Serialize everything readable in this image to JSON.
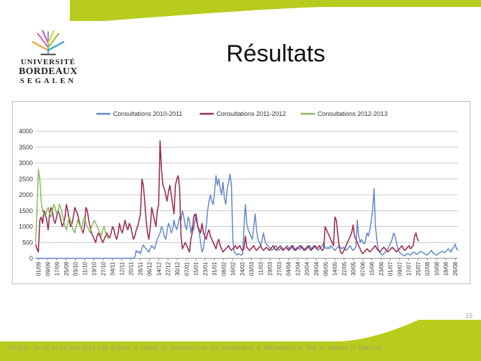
{
  "logo": {
    "line1": "UNIVERSITÉ",
    "line2": "BORDEAUX",
    "line3": "SEGALEN"
  },
  "slide": {
    "title": "Résultats",
    "page_number": "15",
    "footer": "CIUEN - du 16 au 18 avril 2012    J.M. Dubois, J. Gabet, O. Hauchecorne, Ch. Michenaud, S. Michenaud, N. Pré, H. Vaissié, R. Daumas"
  },
  "colors": {
    "accent_green": "#b8cc1e",
    "series_2010": "#5f86c8",
    "series_2011": "#9c2a4e",
    "series_2012": "#86b75a"
  },
  "chart_data": {
    "type": "line",
    "title": "",
    "xlabel": "",
    "ylabel": "",
    "ylim": [
      0,
      4000
    ],
    "yticks": [
      0,
      500,
      1000,
      1500,
      2000,
      2500,
      3000,
      3500,
      4000
    ],
    "grid": true,
    "legend": "top",
    "x_labels": [
      "01/09",
      "09/09",
      "17/09",
      "25/09",
      "03/10",
      "11/10",
      "19/10",
      "27/10",
      "04/11",
      "12/11",
      "20/11",
      "28/11",
      "06/12",
      "14/12",
      "22/12",
      "30/12",
      "07/01",
      "15/01",
      "23/01",
      "31/01",
      "08/02",
      "16/02",
      "24/02",
      "03/03",
      "11/03",
      "19/03",
      "27/03",
      "04/04",
      "12/04",
      "20/04",
      "28/04",
      "06/05",
      "14/05",
      "22/05",
      "30/05",
      "07/06",
      "15/06",
      "23/06",
      "01/07",
      "09/07",
      "17/07",
      "25/07",
      "02/08",
      "10/08",
      "18/08",
      "26/08"
    ],
    "series": [
      {
        "name": "Consultations 2010-2011",
        "color": "#5f86c8",
        "values": [
          0,
          0,
          0,
          0,
          0,
          0,
          0,
          0,
          0,
          0,
          0,
          0,
          0,
          0,
          0,
          0,
          0,
          0,
          0,
          0,
          0,
          0,
          0,
          0,
          0,
          0,
          0,
          0,
          0,
          0,
          0,
          0,
          0,
          0,
          0,
          0,
          0,
          0,
          0,
          0,
          0,
          0,
          0,
          0,
          0,
          0,
          0,
          0,
          0,
          0,
          0,
          0,
          0,
          0,
          0,
          0,
          0,
          0,
          0,
          0,
          0,
          0,
          0,
          0,
          0,
          0,
          0,
          0,
          0,
          0,
          0,
          50,
          250,
          180,
          220,
          150,
          300,
          420,
          350,
          300,
          250,
          200,
          320,
          400,
          350,
          300,
          450,
          600,
          700,
          800,
          1000,
          900,
          700,
          600,
          850,
          1100,
          1000,
          800,
          900,
          1200,
          1000,
          900,
          1100,
          1300,
          1200,
          1500,
          1300,
          1000,
          900,
          1300,
          1200,
          800,
          1000,
          900,
          1200,
          1400,
          1000,
          800,
          500,
          200,
          300,
          700,
          1000,
          1500,
          1800,
          2000,
          1800,
          1700,
          2100,
          2600,
          2300,
          2500,
          2200,
          2000,
          2400,
          1900,
          1700,
          2200,
          2400,
          2650,
          2300,
          600,
          200,
          150,
          100,
          150,
          120,
          100,
          130,
          1000,
          1700,
          1100,
          900,
          800,
          700,
          600,
          1000,
          1400,
          900,
          600,
          500,
          400,
          600,
          800,
          550,
          450,
          400,
          350,
          300,
          250,
          300,
          350,
          400,
          300,
          250,
          300,
          350,
          280,
          300,
          350,
          400,
          300,
          350,
          400,
          300,
          250,
          300,
          350,
          300,
          280,
          400,
          350,
          300,
          250,
          300,
          350,
          400,
          300,
          350,
          400,
          350,
          300,
          250,
          300,
          350,
          400,
          500,
          350,
          300,
          350,
          300,
          400,
          350,
          300,
          250,
          300,
          350,
          400,
          350,
          300,
          350,
          300,
          250,
          300,
          350,
          400,
          300,
          250,
          300,
          350,
          1200,
          700,
          500,
          600,
          500,
          450,
          600,
          800,
          700,
          900,
          1200,
          1500,
          2200,
          1000,
          600,
          300,
          200,
          150,
          100,
          150,
          200,
          250,
          300,
          400,
          500,
          600,
          800,
          700,
          500,
          300,
          200,
          150,
          120,
          100,
          80,
          120,
          150,
          120,
          100,
          150,
          200,
          180,
          150,
          120,
          180,
          220,
          200,
          180,
          150,
          120,
          100,
          150,
          200,
          250,
          180,
          150,
          120,
          100,
          150,
          180,
          200,
          220,
          180,
          200,
          250,
          300,
          250,
          200,
          300,
          350,
          450,
          300,
          250
        ]
      },
      {
        "name": "Consultations 2011-2012",
        "color": "#9c2a4e",
        "values": [
          450,
          300,
          200,
          1200,
          1300,
          1100,
          1500,
          1400,
          1200,
          900,
          1400,
          1600,
          1500,
          1200,
          1100,
          1300,
          1500,
          1400,
          1200,
          1000,
          1100,
          1300,
          1700,
          1500,
          1200,
          1000,
          1100,
          1300,
          1600,
          1500,
          1400,
          1200,
          1000,
          900,
          800,
          1000,
          1600,
          1500,
          1200,
          1000,
          800,
          700,
          600,
          500,
          700,
          800,
          700,
          600,
          500,
          600,
          700,
          800,
          700,
          650,
          800,
          1000,
          900,
          700,
          600,
          800,
          1100,
          900,
          800,
          1000,
          1200,
          1000,
          900,
          1100,
          1000,
          800,
          600,
          700,
          900,
          1000,
          1200,
          1400,
          2500,
          2300,
          1800,
          1200,
          800,
          600,
          1000,
          1600,
          1400,
          1200,
          1000,
          1500,
          1700,
          3700,
          2800,
          2300,
          2200,
          2000,
          1800,
          2100,
          2300,
          2000,
          1700,
          1400,
          2300,
          2500,
          2600,
          2200,
          700,
          300,
          400,
          500,
          400,
          300,
          200,
          600,
          800,
          1300,
          1400,
          1200,
          1000,
          900,
          800,
          1100,
          800,
          700,
          600,
          800,
          900,
          700,
          600,
          500,
          400,
          300,
          500,
          600,
          400,
          300,
          200,
          250,
          300,
          350,
          400,
          300,
          250,
          300,
          350,
          400,
          300,
          350,
          400,
          300,
          250,
          300,
          700,
          350,
          300,
          250,
          300,
          350,
          400,
          300,
          250,
          300,
          350,
          400,
          300,
          250,
          300,
          350,
          300,
          250,
          300,
          350,
          400,
          300,
          250,
          300,
          350,
          400,
          300,
          250,
          300,
          350,
          300,
          250,
          300,
          350,
          400,
          300,
          250,
          300,
          350,
          400,
          350,
          300,
          250,
          300,
          350,
          400,
          300,
          250,
          300,
          350,
          400,
          300,
          350,
          400,
          300,
          250,
          300,
          1000,
          900,
          800,
          700,
          600,
          500,
          400,
          1300,
          1200,
          800,
          400,
          200,
          150,
          200,
          300,
          400,
          500,
          600,
          700,
          800,
          1050,
          700,
          600,
          500,
          400,
          300,
          200,
          150,
          200,
          250,
          300,
          250,
          200,
          250,
          300,
          350,
          400,
          300,
          250,
          200,
          250,
          300,
          350,
          300,
          250,
          200,
          250,
          300,
          350,
          300,
          250,
          200,
          250,
          300,
          350,
          400,
          300,
          250,
          300,
          350,
          400,
          300,
          350,
          400,
          700,
          800,
          600,
          550
        ]
      },
      {
        "name": "Consultations 2012-2013",
        "color": "#86b75a",
        "values": [
          500,
          1500,
          2800,
          2500,
          1800,
          1500,
          1400,
          1300,
          1500,
          1600,
          1400,
          1300,
          1500,
          1700,
          1600,
          1400,
          1500,
          1700,
          1600,
          1400,
          1200,
          1000,
          900,
          1100,
          1300,
          1200,
          1000,
          900,
          800,
          1000,
          1200,
          1100,
          1000,
          900,
          1200,
          1300,
          1100,
          1000,
          900,
          800,
          1000,
          1100,
          1200,
          1100,
          1000,
          900,
          800,
          700,
          900,
          1000,
          800,
          700,
          600
        ]
      }
    ]
  }
}
